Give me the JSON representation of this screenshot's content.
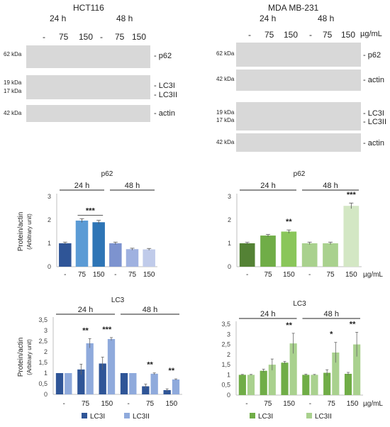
{
  "blots": {
    "left": {
      "cell_line": "HCT116",
      "times": [
        "24 h",
        "48 h"
      ],
      "doses": [
        "-",
        "75",
        "150",
        "-",
        "75",
        "150"
      ],
      "panels": [
        {
          "kda": "62 kDa",
          "labels": [
            "- p62"
          ]
        },
        {
          "kda": "19 kDa",
          "kda2": "17 kDa",
          "labels": [
            "- LC3I",
            "- LC3II"
          ]
        },
        {
          "kda": "42 kDa",
          "labels": [
            "- actin"
          ]
        }
      ]
    },
    "right": {
      "cell_line": "MDA MB-231",
      "times": [
        "24 h",
        "48 h"
      ],
      "doses": [
        "-",
        "75",
        "150",
        "-",
        "75",
        "150"
      ],
      "unit": "µg/mL",
      "panels": [
        {
          "kda": "62 kDa",
          "labels": [
            "- p62"
          ]
        },
        {
          "kda": "42 kDa",
          "labels": [
            "- actin"
          ]
        },
        {
          "kda": "19 kDa",
          "kda2": "17 kDa",
          "labels": [
            "- LC3I",
            "- LC3II"
          ]
        },
        {
          "kda": "42 kDa",
          "labels": [
            "- actin"
          ]
        }
      ]
    }
  },
  "chart_data": [
    {
      "id": "p62-hct116",
      "type": "bar",
      "title": "p62",
      "ylabel": "Protein/actin",
      "ylabel2": "(Arbitrary unit)",
      "ylim": [
        0,
        3
      ],
      "yticks": [
        "0",
        "1",
        "2",
        "3"
      ],
      "groups": [
        "24 h",
        "48 h"
      ],
      "categories": [
        "-",
        "75",
        "150",
        "-",
        "75",
        "150"
      ],
      "values": [
        1.0,
        1.97,
        1.9,
        1.0,
        0.75,
        0.74
      ],
      "errors": [
        0.05,
        0.08,
        0.08,
        0.05,
        0.04,
        0.04
      ],
      "colors": [
        "#2f5597",
        "#5b9bd5",
        "#2e75b6",
        "#7d93cf",
        "#9fb1e0",
        "#c0cbea"
      ],
      "annotations": [
        {
          "text": "***",
          "over": [
            1,
            2
          ]
        }
      ]
    },
    {
      "id": "p62-mda",
      "type": "bar",
      "title": "p62",
      "ylim": [
        0,
        3
      ],
      "yticks": [
        "0",
        "1",
        "2",
        "3"
      ],
      "groups": [
        "24 h",
        "48 h"
      ],
      "categories": [
        "-",
        "75",
        "150",
        "-",
        "75",
        "150"
      ],
      "unit": "µg/mL",
      "values": [
        1.0,
        1.33,
        1.5,
        1.0,
        1.0,
        2.6
      ],
      "errors": [
        0.04,
        0.05,
        0.07,
        0.05,
        0.05,
        0.12
      ],
      "colors": [
        "#548235",
        "#70ad47",
        "#8ac65a",
        "#a9d18e",
        "#a9d18e",
        "#d3e7c4"
      ],
      "annotations": [
        {
          "text": "**",
          "over": [
            2
          ]
        },
        {
          "text": "***",
          "over": [
            5
          ]
        }
      ]
    },
    {
      "id": "lc3-hct116",
      "type": "bar",
      "title": "LC3",
      "ylabel": "Protein/actin",
      "ylabel2": "(Arbitrary unit)",
      "ylim": [
        0,
        3.5
      ],
      "yticks": [
        "0",
        "0,5",
        "1",
        "1,5",
        "2",
        "2,5",
        "3",
        "3,5"
      ],
      "groups": [
        "24 h",
        "48 h"
      ],
      "categories": [
        "-",
        "75",
        "150",
        "-",
        "75",
        "150"
      ],
      "series": [
        {
          "name": "LC3I",
          "values": [
            1.0,
            1.17,
            1.45,
            1.0,
            0.38,
            0.2
          ],
          "errors": [
            0.0,
            0.25,
            0.3,
            0.0,
            0.1,
            0.06
          ],
          "color": "#2f5597"
        },
        {
          "name": "LC3II",
          "values": [
            1.0,
            2.4,
            2.6,
            1.0,
            0.97,
            0.7
          ],
          "errors": [
            0.0,
            0.22,
            0.07,
            0.0,
            0.04,
            0.03
          ],
          "color": "#8faadc"
        }
      ],
      "annotations": [
        {
          "text": "**",
          "over": [
            1
          ]
        },
        {
          "text": "***",
          "over": [
            2
          ]
        },
        {
          "text": "**",
          "over": [
            4
          ]
        },
        {
          "text": "**",
          "over": [
            5
          ]
        }
      ]
    },
    {
      "id": "lc3-mda",
      "type": "bar",
      "title": "LC3",
      "ylim": [
        0,
        3.5
      ],
      "yticks": [
        "0",
        "0,5",
        "1",
        "1,5",
        "2",
        "2,5",
        "3",
        "3,5"
      ],
      "groups": [
        "24 h",
        "48 h"
      ],
      "categories": [
        "-",
        "75",
        "150",
        "-",
        "75",
        "150"
      ],
      "unit": "µg/mL",
      "series": [
        {
          "name": "LC3I",
          "values": [
            1.0,
            1.2,
            1.6,
            1.0,
            1.1,
            1.05
          ],
          "errors": [
            0.02,
            0.08,
            0.06,
            0.03,
            0.15,
            0.07
          ],
          "color": "#70ad47"
        },
        {
          "name": "LC3II",
          "values": [
            1.0,
            1.5,
            2.55,
            1.0,
            2.1,
            2.5
          ],
          "errors": [
            0.02,
            0.28,
            0.5,
            0.02,
            0.5,
            0.6
          ],
          "color": "#a9d18e"
        }
      ],
      "annotations": [
        {
          "text": "**",
          "over": [
            2
          ]
        },
        {
          "text": "*",
          "over": [
            4
          ]
        },
        {
          "text": "**",
          "over": [
            5
          ]
        }
      ]
    }
  ]
}
